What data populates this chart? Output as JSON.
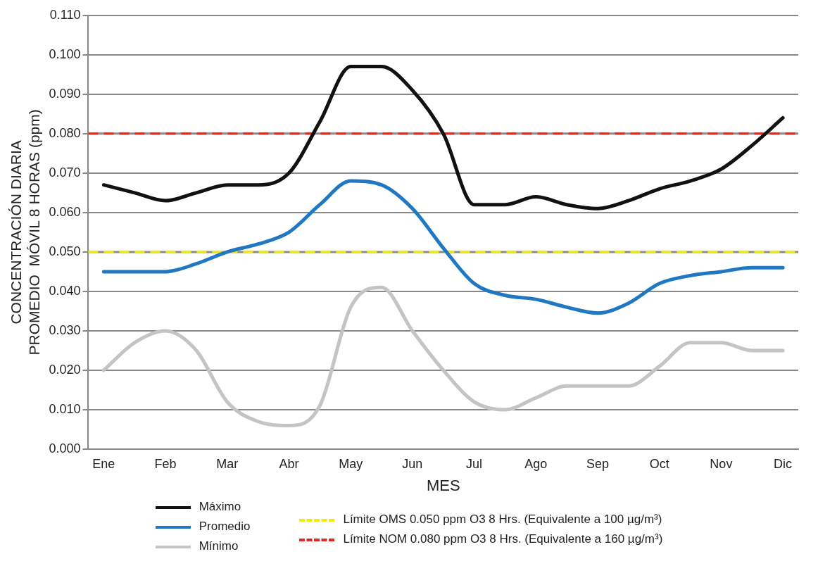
{
  "chart_data": {
    "type": "line",
    "xlabel": "MES",
    "ylabel": "CONCENTRACIÓN DIARIA\nPROMEDIO  MÓVIL 8 HORAS (ppm)",
    "categories": [
      "Ene",
      null,
      "Feb",
      null,
      "Mar",
      null,
      "Abr",
      null,
      "May",
      null,
      "Jun",
      null,
      "Jul",
      null,
      "Ago",
      null,
      "Sep",
      null,
      "Oct",
      null,
      "Nov",
      null,
      "Dic"
    ],
    "ylim": [
      0,
      0.11
    ],
    "yticks": [
      {
        "value": 0,
        "label": "0.000"
      },
      {
        "value": 0.01,
        "label": "0.010"
      },
      {
        "value": 0.02,
        "label": "0.020"
      },
      {
        "value": 0.03,
        "label": "0.030"
      },
      {
        "value": 0.04,
        "label": "0.040"
      },
      {
        "value": 0.05,
        "label": "0.050"
      },
      {
        "value": 0.06,
        "label": "0.060"
      },
      {
        "value": 0.07,
        "label": "0.070"
      },
      {
        "value": 0.08,
        "label": "0.080"
      },
      {
        "value": 0.09,
        "label": "0.090"
      },
      {
        "value": 0.1,
        "label": "0.100"
      },
      {
        "value": 0.11,
        "label": "0.110"
      }
    ],
    "grid": "y",
    "legend": "bottom",
    "marker": "none",
    "line_style": "solid",
    "series": [
      {
        "name": "Máximo",
        "color": "#111111",
        "values": [
          0.067,
          0.065,
          0.063,
          0.065,
          0.067,
          0.067,
          0.07,
          0.083,
          0.097,
          0.097,
          0.091,
          0.08,
          0.062,
          0.062,
          0.064,
          0.062,
          0.061,
          0.063,
          0.066,
          0.068,
          0.071,
          0.077,
          0.084
        ]
      },
      {
        "name": "Promedio",
        "color": "#1f78c1",
        "values": [
          0.045,
          0.045,
          0.045,
          0.047,
          0.05,
          0.052,
          0.055,
          0.062,
          0.068,
          0.067,
          0.061,
          0.051,
          0.042,
          0.039,
          0.038,
          0.036,
          0.0345,
          0.037,
          0.042,
          0.044,
          0.045,
          0.046,
          0.046
        ]
      },
      {
        "name": "Mínimo",
        "color": "#c4c4c4",
        "values": [
          0.02,
          0.027,
          0.03,
          0.025,
          0.012,
          0.007,
          0.006,
          0.011,
          0.036,
          0.041,
          0.03,
          0.02,
          0.012,
          0.01,
          0.013,
          0.016,
          0.016,
          0.016,
          0.021,
          0.027,
          0.027,
          0.025,
          0.025
        ]
      }
    ],
    "ref_lines": [
      {
        "axis": "y",
        "value": 0.05,
        "label": "Límite OMS 0.050 ppm O3 8 Hrs. (Equivalente a 100 µg/m³)",
        "color": "#f2ec00",
        "line_style": "dashed"
      },
      {
        "axis": "y",
        "value": 0.08,
        "label": "Límite NOM 0.080 ppm O3 8 Hrs. (Equivalente a 160 µg/m³)",
        "color": "#e02a1e",
        "line_style": "dashed"
      }
    ]
  }
}
